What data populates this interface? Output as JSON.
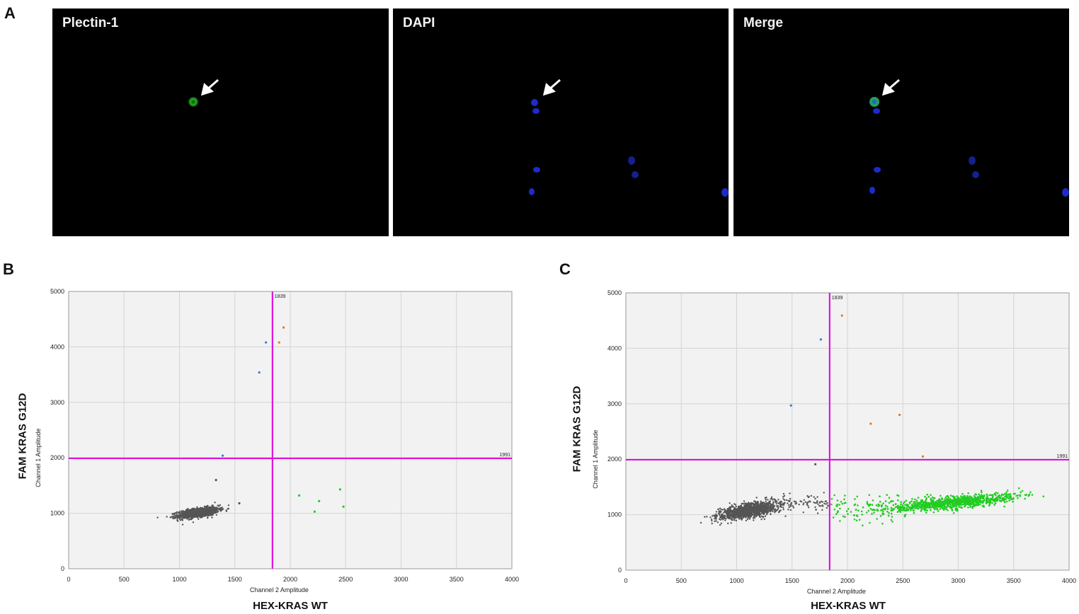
{
  "panels": {
    "a_letter": "A",
    "b_letter": "B",
    "c_letter": "C"
  },
  "micrographs": [
    {
      "label": "Plectin-1",
      "stain_color": "#1fa51f"
    },
    {
      "label": "DAPI",
      "stain_color": "#1e2fd6"
    },
    {
      "label": "Merge",
      "stain_color": "#1fa51f"
    }
  ],
  "colors": {
    "threshold": "#e000e0",
    "double_negative": "#555555",
    "hex_positive": "#22cc22",
    "fam_positive": "#3a7bd5",
    "double_positive": "#e07a1f",
    "plot_bg": "#f2f2f2",
    "grid": "#d4d4d4"
  },
  "chart_data": [
    {
      "panel": "B",
      "type": "scatter",
      "xlabel": "Channel 2 Amplitude",
      "ylabel": "Channel 1 Amplitude",
      "outer_xlabel": "HEX-KRAS  WT",
      "outer_ylabel": "FAM KRAS G12D",
      "xlim": [
        0,
        4000
      ],
      "ylim": [
        0,
        5000
      ],
      "xticks": [
        "0",
        "500",
        "1000",
        "1500",
        "2000",
        "2500",
        "3000",
        "3500",
        "4000"
      ],
      "yticks": [
        "0",
        "1000",
        "2000",
        "3000",
        "4000",
        "5000"
      ],
      "grid": true,
      "x_threshold": 1839,
      "y_threshold": 1991,
      "x_threshold_label": "1839",
      "y_threshold_label": "1991",
      "double_negative_cluster": {
        "x_center": 1170,
        "y_center": 1010,
        "x_spread": 130,
        "y_spread": 75,
        "count": 1200
      },
      "series": [
        {
          "category": "fam_positive",
          "points": [
            [
              1780,
              4080
            ],
            [
              1720,
              3540
            ],
            [
              1390,
              2040
            ]
          ]
        },
        {
          "category": "double_positive",
          "points": [
            [
              1940,
              4350
            ],
            [
              1900,
              4080
            ]
          ]
        },
        {
          "category": "hex_positive",
          "points": [
            [
              2080,
              1320
            ],
            [
              2220,
              1030
            ],
            [
              2260,
              1220
            ],
            [
              2450,
              1430
            ],
            [
              2480,
              1120
            ]
          ]
        },
        {
          "category": "double_negative_outliers",
          "points": [
            [
              1330,
              1600
            ],
            [
              1540,
              1180
            ]
          ]
        }
      ]
    },
    {
      "panel": "C",
      "type": "scatter",
      "xlabel": "Channel 2 Amplitude",
      "ylabel": "Channel 1 Amplitude",
      "outer_xlabel": "HEX-KRAS  WT",
      "outer_ylabel": "FAM KRAS G12D",
      "xlim": [
        0,
        4000
      ],
      "ylim": [
        0,
        5000
      ],
      "xticks": [
        "0",
        "500",
        "1000",
        "1500",
        "2000",
        "2500",
        "3000",
        "3500",
        "4000"
      ],
      "yticks": [
        "0",
        "1000",
        "2000",
        "3000",
        "4000",
        "5000"
      ],
      "grid": true,
      "x_threshold": 1839,
      "y_threshold": 1991,
      "x_threshold_label": "1839",
      "y_threshold_label": "1991",
      "double_negative_cluster": {
        "x_center": 1100,
        "y_center": 1070,
        "x_spread": 180,
        "y_spread": 110,
        "count": 1300
      },
      "double_negative_trail": {
        "x_range": [
          1250,
          1830
        ],
        "y_center": 1180,
        "y_spread": 90,
        "count": 110
      },
      "hex_positive_cluster": {
        "x_center": 2950,
        "y_center": 1220,
        "x_spread": 280,
        "y_spread": 80,
        "count": 900
      },
      "hex_positive_trail": {
        "x_range": [
          1850,
          2550
        ],
        "y_center": 1120,
        "y_spread": 120,
        "count": 110
      },
      "series": [
        {
          "category": "fam_positive",
          "points": [
            [
              1760,
              4160
            ],
            [
              1490,
              2970
            ]
          ]
        },
        {
          "category": "double_positive",
          "points": [
            [
              1950,
              4590
            ],
            [
              2210,
              2640
            ],
            [
              2470,
              2800
            ],
            [
              2680,
              2050
            ]
          ]
        },
        {
          "category": "double_negative_outliers",
          "points": [
            [
              1710,
              1910
            ]
          ]
        }
      ]
    }
  ]
}
